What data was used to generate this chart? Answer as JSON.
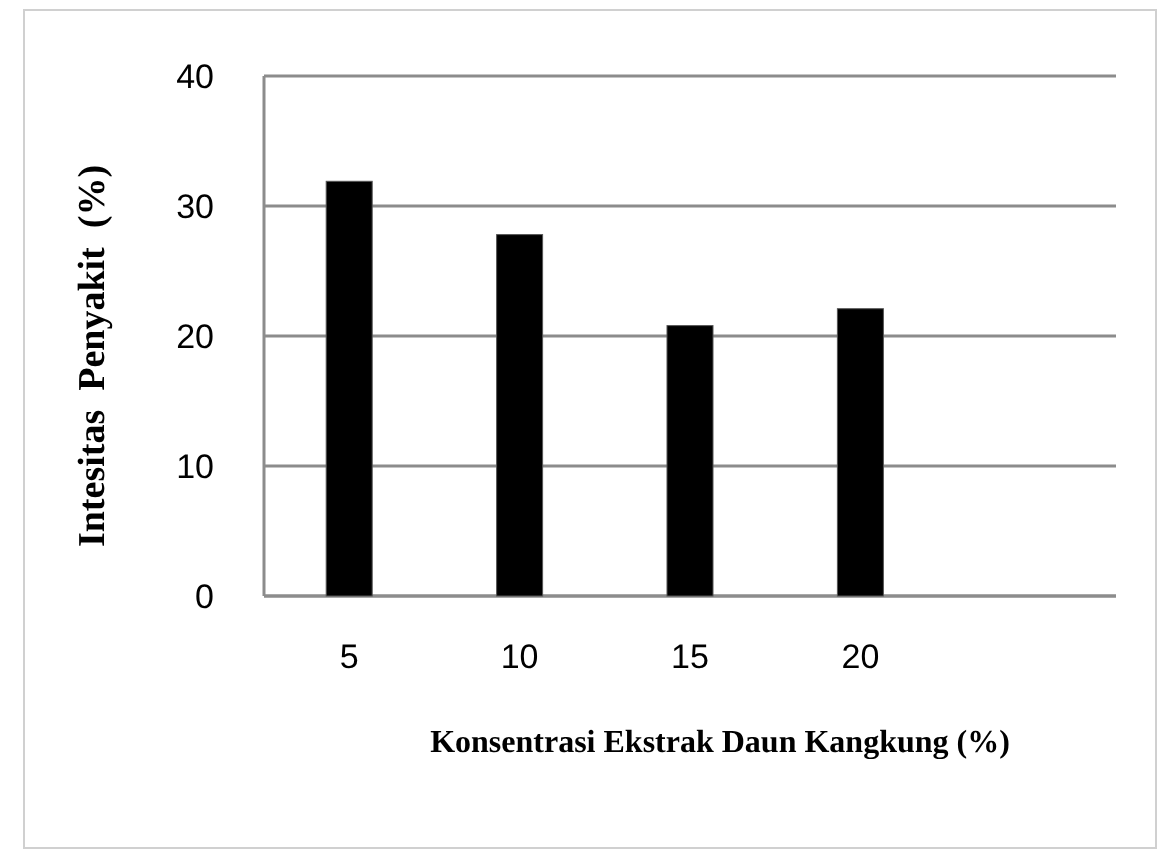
{
  "chart_data": {
    "type": "bar",
    "xlabel": "Konsentrasi Ekstrak Daun Kangkung (%)",
    "ylabel": "Intesitas  Penyakit  (%)",
    "categories": [
      "5",
      "10",
      "15",
      "20",
      null
    ],
    "values": [
      31.9,
      27.8,
      20.8,
      22.1,
      null
    ],
    "color": "#000000",
    "ylim": [
      0,
      40
    ],
    "yticks": [
      0,
      10,
      20,
      30,
      40
    ],
    "grid": "y"
  }
}
